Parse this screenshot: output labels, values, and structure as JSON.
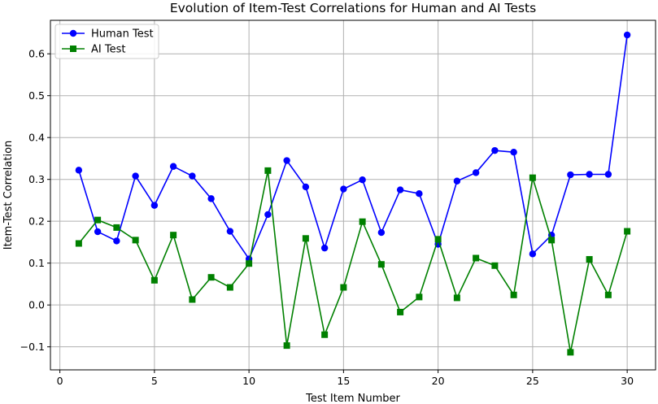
{
  "chart_data": {
    "type": "line",
    "title": "Evolution of Item-Test Correlations for Human and AI Tests",
    "xlabel": "Test Item Number",
    "ylabel": "Item-Test Correlation",
    "xlim": [
      -0.5,
      31.5
    ],
    "ylim": [
      -0.155,
      0.68
    ],
    "xticks": [
      0,
      5,
      10,
      15,
      20,
      25,
      30
    ],
    "yticks": [
      -0.1,
      0.0,
      0.1,
      0.2,
      0.3,
      0.4,
      0.5,
      0.6
    ],
    "ytick_labels": [
      "−0.1",
      "0.0",
      "0.1",
      "0.2",
      "0.3",
      "0.4",
      "0.5",
      "0.6"
    ],
    "grid": true,
    "legend_position": "top-left",
    "x": [
      1,
      2,
      3,
      4,
      5,
      6,
      7,
      8,
      9,
      10,
      11,
      12,
      13,
      14,
      15,
      16,
      17,
      18,
      19,
      20,
      21,
      22,
      23,
      24,
      25,
      26,
      27,
      28,
      29,
      30
    ],
    "series": [
      {
        "name": "Human Test",
        "color": "#0000ff",
        "marker": "circle",
        "values": [
          0.322,
          0.175,
          0.153,
          0.308,
          0.238,
          0.331,
          0.308,
          0.254,
          0.176,
          0.11,
          0.216,
          0.345,
          0.282,
          0.136,
          0.277,
          0.299,
          0.173,
          0.275,
          0.266,
          0.145,
          0.296,
          0.316,
          0.369,
          0.365,
          0.122,
          0.167,
          0.311,
          0.312,
          0.312,
          0.645
        ]
      },
      {
        "name": "AI Test",
        "color": "#008000",
        "marker": "square",
        "values": [
          0.147,
          0.203,
          0.185,
          0.155,
          0.059,
          0.167,
          0.013,
          0.066,
          0.042,
          0.099,
          0.321,
          -0.097,
          0.159,
          -0.071,
          0.042,
          0.199,
          0.097,
          -0.017,
          0.019,
          0.157,
          0.017,
          0.112,
          0.094,
          0.024,
          0.304,
          0.155,
          -0.113,
          0.109,
          0.024,
          0.176
        ]
      }
    ]
  }
}
